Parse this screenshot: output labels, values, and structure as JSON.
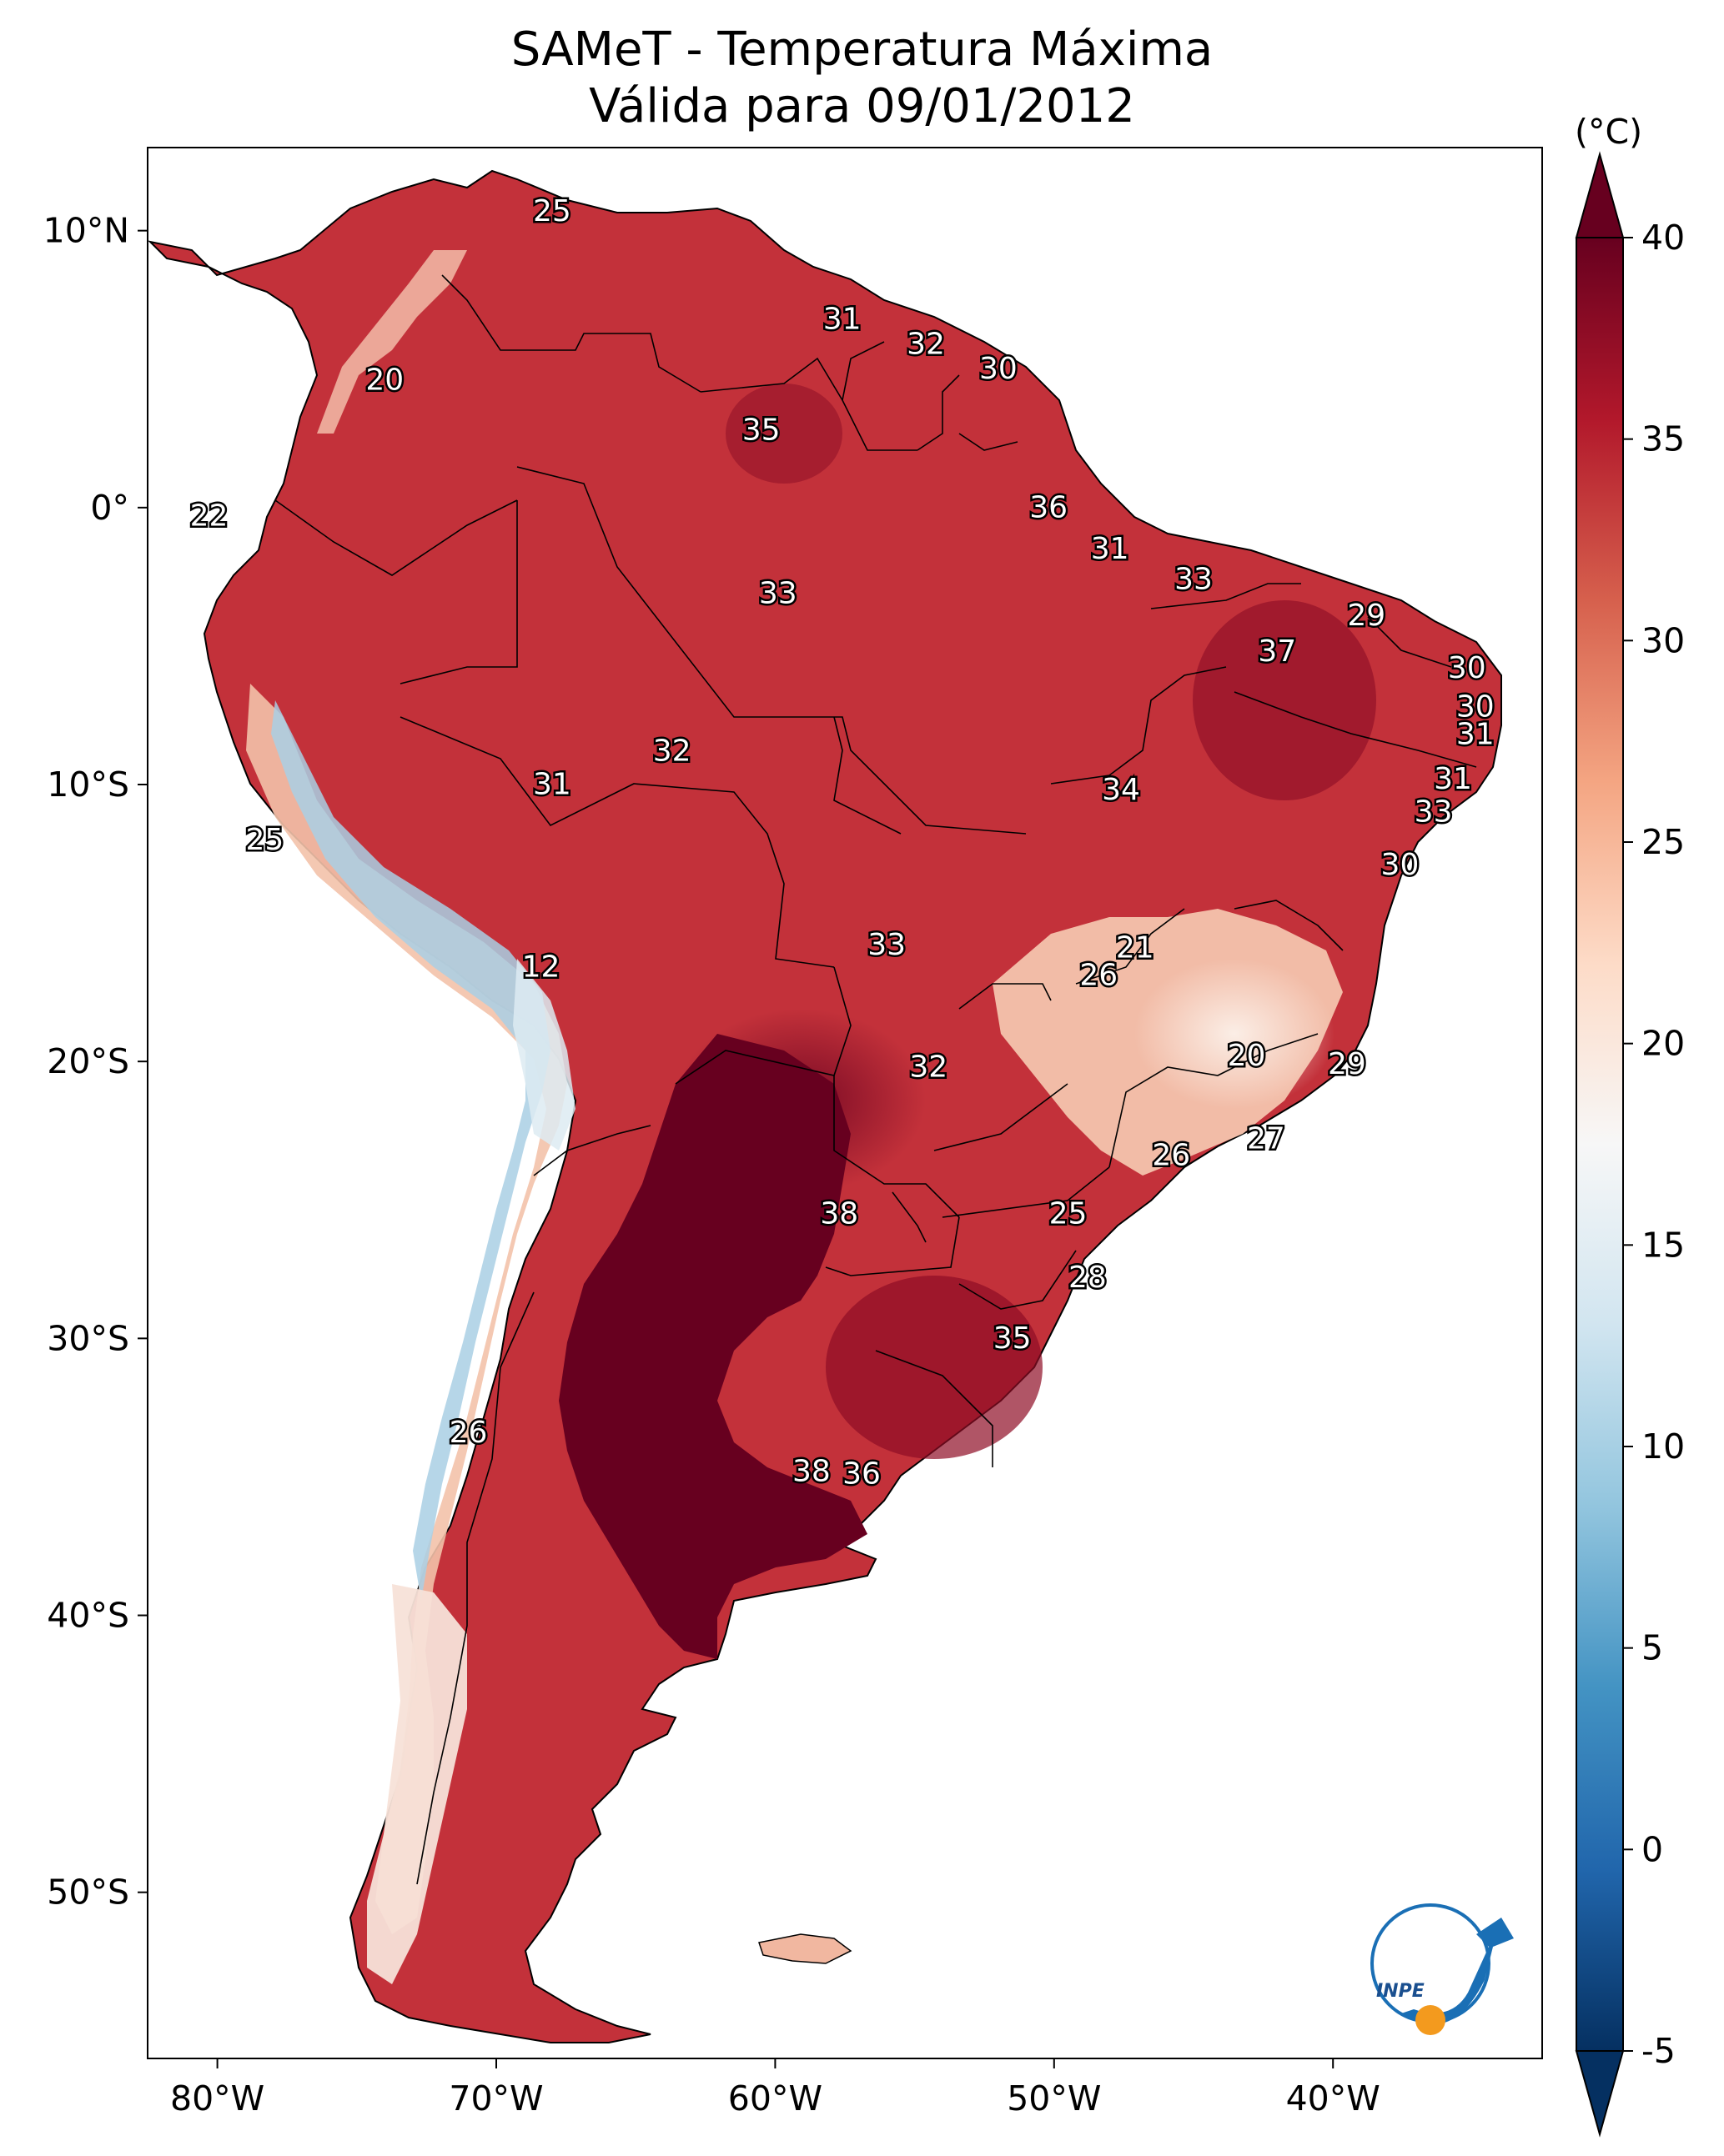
{
  "title": "SAMeT - Temperatura Máxima",
  "subtitle": "Válida para 09/01/2012",
  "colorbar": {
    "unit": "(°C)",
    "min": -5,
    "max": 40,
    "ticks": [
      40,
      35,
      30,
      25,
      20,
      15,
      10,
      5,
      0,
      -5
    ],
    "colors": [
      "#053061",
      "#2166ac",
      "#4393c3",
      "#92c5de",
      "#d1e5f0",
      "#f7f7f7",
      "#fddbc7",
      "#f4a582",
      "#d6604d",
      "#b2182b",
      "#67001f"
    ],
    "extend": "both"
  },
  "axes": {
    "lon_ticks": [
      "80°W",
      "70°W",
      "60°W",
      "50°W",
      "40°W"
    ],
    "lat_ticks": [
      "10°N",
      "0°",
      "10°S",
      "20°S",
      "30°S",
      "40°S",
      "50°S"
    ]
  },
  "logo": "INPE",
  "map_data": {
    "type": "heatmap",
    "lon_range": [
      -82.5,
      -32.5
    ],
    "lat_range": [
      -56,
      13
    ],
    "labels": [
      {
        "v": "25",
        "lon": -68.0,
        "lat": 10.7
      },
      {
        "v": "20",
        "lon": -74.0,
        "lat": 4.6
      },
      {
        "v": "22",
        "lon": -80.3,
        "lat": -0.3
      },
      {
        "v": "31",
        "lon": -57.6,
        "lat": 6.8
      },
      {
        "v": "32",
        "lon": -54.6,
        "lat": 5.9
      },
      {
        "v": "30",
        "lon": -52.0,
        "lat": 5.0
      },
      {
        "v": "35",
        "lon": -60.5,
        "lat": 2.8
      },
      {
        "v": "36",
        "lon": -50.2,
        "lat": 0.0
      },
      {
        "v": "31",
        "lon": -48.0,
        "lat": -1.5
      },
      {
        "v": "33",
        "lon": -45.0,
        "lat": -2.6
      },
      {
        "v": "33",
        "lon": -59.9,
        "lat": -3.1
      },
      {
        "v": "29",
        "lon": -38.8,
        "lat": -3.9
      },
      {
        "v": "37",
        "lon": -42.0,
        "lat": -5.2
      },
      {
        "v": "30",
        "lon": -35.2,
        "lat": -5.8
      },
      {
        "v": "30",
        "lon": -34.9,
        "lat": -7.2
      },
      {
        "v": "31",
        "lon": -34.9,
        "lat": -8.2
      },
      {
        "v": "32",
        "lon": -63.7,
        "lat": -8.8
      },
      {
        "v": "31",
        "lon": -68.0,
        "lat": -10.0
      },
      {
        "v": "34",
        "lon": -47.6,
        "lat": -10.2
      },
      {
        "v": "31",
        "lon": -35.7,
        "lat": -9.8
      },
      {
        "v": "33",
        "lon": -36.4,
        "lat": -11.0
      },
      {
        "v": "25",
        "lon": -78.3,
        "lat": -12.0
      },
      {
        "v": "30",
        "lon": -37.6,
        "lat": -12.9
      },
      {
        "v": "33",
        "lon": -56.0,
        "lat": -15.8
      },
      {
        "v": "21",
        "lon": -47.1,
        "lat": -15.9
      },
      {
        "v": "26",
        "lon": -48.4,
        "lat": -16.9
      },
      {
        "v": "12",
        "lon": -68.4,
        "lat": -16.6
      },
      {
        "v": "20",
        "lon": -43.1,
        "lat": -19.8
      },
      {
        "v": "29",
        "lon": -39.5,
        "lat": -20.1
      },
      {
        "v": "32",
        "lon": -54.5,
        "lat": -20.2
      },
      {
        "v": "27",
        "lon": -42.4,
        "lat": -22.8
      },
      {
        "v": "26",
        "lon": -45.8,
        "lat": -23.4
      },
      {
        "v": "38",
        "lon": -57.7,
        "lat": -25.5
      },
      {
        "v": "25",
        "lon": -49.5,
        "lat": -25.5
      },
      {
        "v": "28",
        "lon": -48.8,
        "lat": -27.8
      },
      {
        "v": "35",
        "lon": -51.5,
        "lat": -30.0
      },
      {
        "v": "26",
        "lon": -71.0,
        "lat": -33.4
      },
      {
        "v": "38",
        "lon": -58.7,
        "lat": -34.8
      },
      {
        "v": "36",
        "lon": -56.9,
        "lat": -34.9
      }
    ]
  }
}
